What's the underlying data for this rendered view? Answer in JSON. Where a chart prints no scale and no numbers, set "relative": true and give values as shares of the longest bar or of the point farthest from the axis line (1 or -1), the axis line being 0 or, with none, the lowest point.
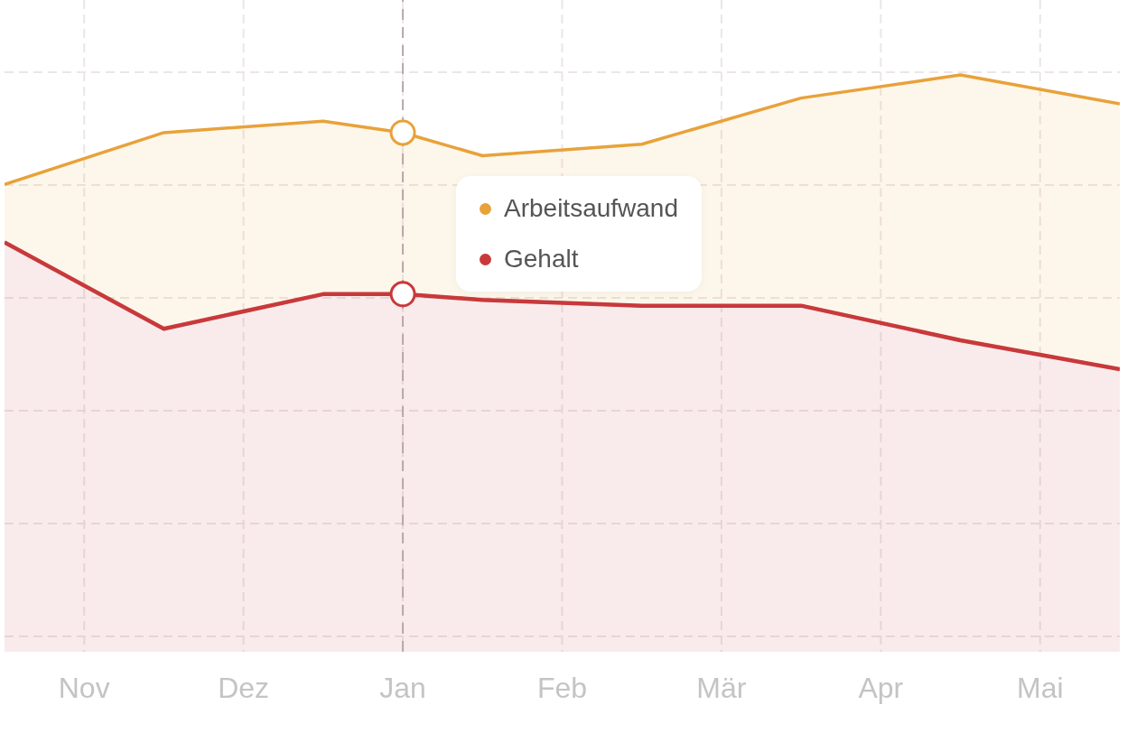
{
  "chart_data": {
    "type": "area",
    "relative": true,
    "stacked": true,
    "categories": [
      null,
      "Nov",
      null,
      "Dez",
      null,
      "Jan",
      null,
      "Feb",
      null,
      "Mär",
      null,
      "Apr",
      null,
      "Mai",
      null
    ],
    "series": [
      {
        "name": "Gehalt",
        "color": "#c8393b",
        "values": [
          0.71,
          null,
          0.56,
          null,
          0.62,
          0.62,
          0.61,
          null,
          0.6,
          null,
          0.6,
          null,
          0.54,
          null,
          0.49
        ]
      },
      {
        "name": "Arbeitsaufwand",
        "color": "#e8a23a",
        "values": [
          0.1,
          null,
          0.34,
          null,
          0.3,
          0.28,
          0.25,
          null,
          0.28,
          null,
          0.36,
          null,
          0.46,
          null,
          0.46
        ]
      }
    ],
    "ref_lines": [
      {
        "axis": "x",
        "value": "Jan"
      }
    ],
    "grid": true,
    "legend": "top",
    "line_style": "solid"
  }
}
